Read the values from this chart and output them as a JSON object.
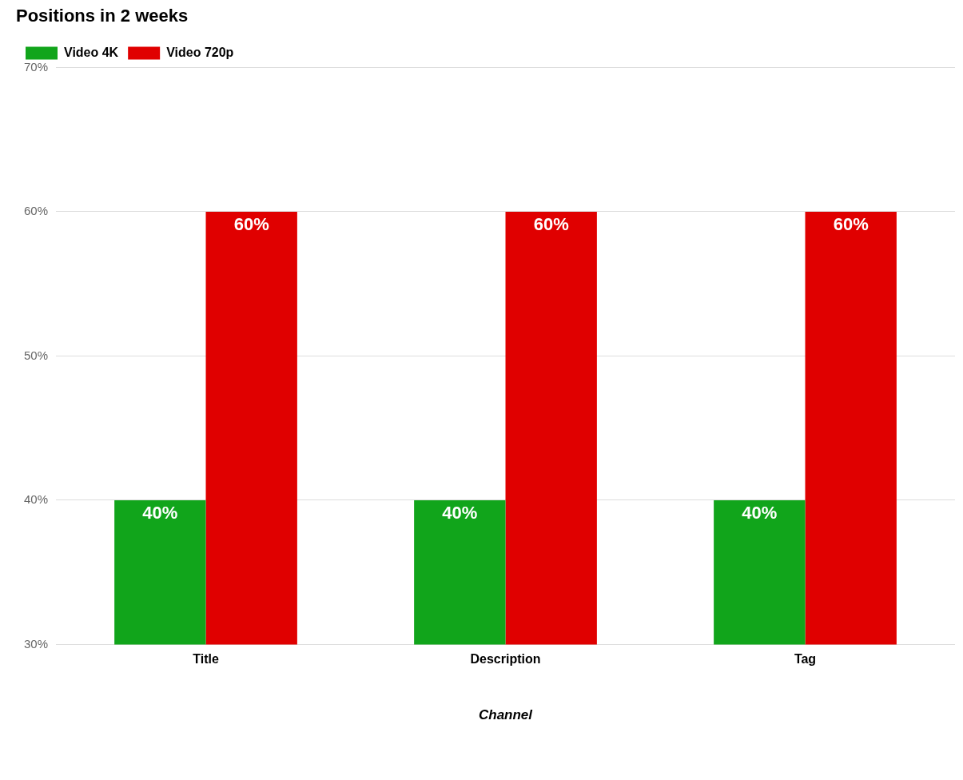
{
  "chart_data": {
    "type": "bar",
    "title": "Positions in 2 weeks",
    "xlabel": "Channel",
    "categories": [
      "Title",
      "Description",
      "Tag"
    ],
    "series": [
      {
        "name": "Video 4K",
        "color": "#11a51b",
        "values": [
          40,
          40,
          40
        ],
        "value_labels": [
          "40%",
          "40%",
          "40%"
        ]
      },
      {
        "name": "Video 720p",
        "color": "#e00000",
        "values": [
          60,
          60,
          60
        ],
        "value_labels": [
          "60%",
          "60%",
          "60%"
        ]
      }
    ],
    "ylim": [
      30,
      70
    ],
    "yticks": [
      {
        "value": 30,
        "label": "30%"
      },
      {
        "value": 40,
        "label": "40%"
      },
      {
        "value": 50,
        "label": "50%"
      },
      {
        "value": 60,
        "label": "60%"
      },
      {
        "value": 70,
        "label": "70%"
      }
    ],
    "grid": "y",
    "legend": "top left"
  }
}
